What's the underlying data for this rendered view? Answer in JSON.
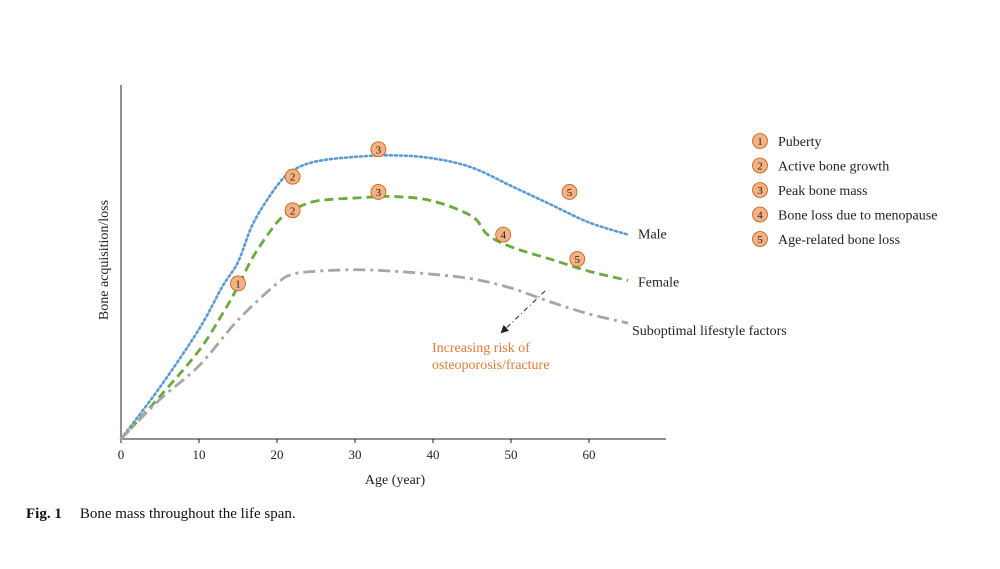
{
  "caption": {
    "label": "Fig. 1",
    "text": "Bone mass throughout the life span."
  },
  "chart_data": {
    "type": "line",
    "title": "",
    "xlabel": "Age (year)",
    "ylabel": "Bone acquisition/loss",
    "xlim": [
      0,
      70
    ],
    "ylim": [
      0,
      100
    ],
    "x_ticks": [
      "0",
      "10",
      "20",
      "30",
      "40",
      "50",
      "60"
    ],
    "y_ticks": [],
    "grid": false,
    "series": [
      {
        "name": "Male",
        "style": "dotted",
        "color": "#5b9bd5",
        "x": [
          0,
          5,
          10,
          13,
          15,
          17,
          20,
          22,
          25,
          30,
          35,
          40,
          45,
          50,
          55,
          60,
          65
        ],
        "y": [
          0,
          17,
          36,
          50,
          58,
          71,
          83,
          88,
          91,
          92.5,
          93,
          92,
          89,
          83,
          77,
          71,
          67
        ]
      },
      {
        "name": "Female",
        "style": "dashed",
        "color": "#6aab3c",
        "x": [
          0,
          5,
          10,
          13,
          15,
          17,
          20,
          22,
          25,
          30,
          35,
          40,
          45,
          47,
          50,
          55,
          60,
          65
        ],
        "y": [
          0,
          14,
          29,
          41,
          50,
          60,
          71,
          75,
          78,
          79,
          79.5,
          78,
          73,
          67,
          63,
          59,
          55,
          52
        ]
      },
      {
        "name": "Suboptimal lifestyle factors",
        "style": "dashdot",
        "color": "#a6a6a6",
        "x": [
          0,
          5,
          10,
          15,
          20,
          22,
          25,
          30,
          35,
          40,
          45,
          50,
          55,
          60,
          65
        ],
        "y": [
          0,
          13,
          24,
          39,
          51,
          54,
          55,
          55.5,
          55,
          54,
          52.5,
          49.5,
          45,
          41,
          38
        ]
      }
    ],
    "markers": [
      {
        "num": "1",
        "x": 15,
        "y": 51
      },
      {
        "num": "2",
        "x": 22,
        "y": 86
      },
      {
        "num": "3",
        "x": 33,
        "y": 95
      },
      {
        "num": "5",
        "x": 57.5,
        "y": 81
      },
      {
        "num": "2",
        "x": 22,
        "y": 75
      },
      {
        "num": "3",
        "x": 33,
        "y": 81
      },
      {
        "num": "4",
        "x": 49,
        "y": 67
      },
      {
        "num": "5",
        "x": 58.5,
        "y": 59
      }
    ],
    "annotation": {
      "lines": [
        "Increasing risk of",
        "osteoporosis/fracture"
      ],
      "color": "#e07b39"
    },
    "legend": {
      "placement": "right",
      "items": [
        {
          "num": "1",
          "label": "Puberty"
        },
        {
          "num": "2",
          "label": "Active bone growth"
        },
        {
          "num": "3",
          "label": "Peak bone mass"
        },
        {
          "num": "4",
          "label": "Bone loss due to menopause"
        },
        {
          "num": "5",
          "label": "Age-related bone loss"
        }
      ]
    },
    "marker_color": "#f4b183"
  }
}
